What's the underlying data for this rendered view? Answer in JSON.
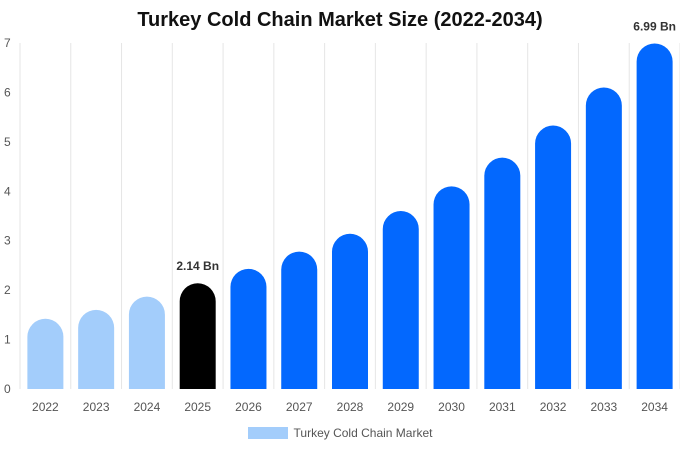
{
  "chart_data": {
    "type": "bar",
    "title": "Turkey Cold Chain Market Size (2022-2034)",
    "categories": [
      "2022",
      "2023",
      "2024",
      "2025",
      "2026",
      "2027",
      "2028",
      "2029",
      "2030",
      "2031",
      "2032",
      "2033",
      "2034"
    ],
    "series": [
      {
        "name": "Turkey Cold Chain Market",
        "values": [
          1.42,
          1.6,
          1.87,
          2.14,
          2.43,
          2.78,
          3.14,
          3.6,
          4.1,
          4.68,
          5.33,
          6.1,
          6.99
        ]
      }
    ],
    "ylim": [
      0,
      7
    ],
    "yticks": [
      0,
      1,
      2,
      3,
      4,
      5,
      6,
      7
    ],
    "data_labels": [
      {
        "category": "2025",
        "text": "2.14 Bn"
      },
      {
        "category": "2034",
        "text": "6.99 Bn"
      }
    ],
    "colors": {
      "historical": "#a3cdfb",
      "base_year": "#000000",
      "forecast": "#0368fe",
      "grid": "#e6e6e6"
    },
    "historical_categories": [
      "2022",
      "2023",
      "2024"
    ],
    "base_year_category": "2025",
    "grid": "vertical",
    "legend_position": "bottom-center"
  }
}
